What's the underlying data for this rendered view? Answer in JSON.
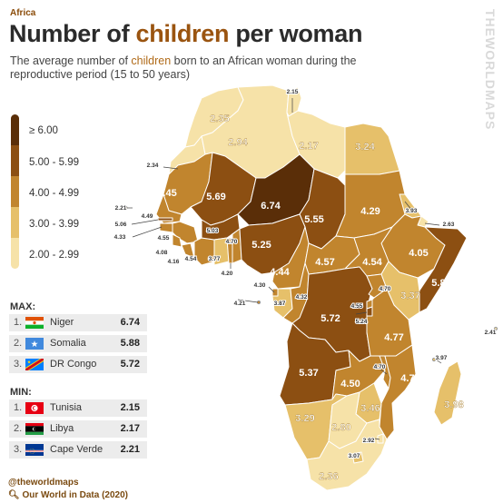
{
  "header": {
    "region": "Africa",
    "title_pre": "Number of ",
    "title_hl": "children",
    "title_post": " per woman",
    "subtitle_pre": "The average number of ",
    "subtitle_hl": "children",
    "subtitle_post": " born to an African woman during the reproductive period (15 to 50 years)",
    "watermark": "THEWORLDMAPS"
  },
  "legend": [
    {
      "label": "≥ 6.00",
      "color": "#5a2e08"
    },
    {
      "label": "5.00 - 5.99",
      "color": "#8c4f12"
    },
    {
      "label": "4.00 - 4.99",
      "color": "#c1852e"
    },
    {
      "label": "3.00 - 3.99",
      "color": "#e6c06a"
    },
    {
      "label": "2.00 - 2.99",
      "color": "#f6e2a8"
    }
  ],
  "max": {
    "title": "MAX:",
    "rows": [
      {
        "rank": "1.",
        "name": "Niger",
        "value": "6.74",
        "flag": "niger-flag"
      },
      {
        "rank": "2.",
        "name": "Somalia",
        "value": "5.88",
        "flag": "somalia-flag"
      },
      {
        "rank": "3.",
        "name": "DR Congo",
        "value": "5.72",
        "flag": "drcongo-flag"
      }
    ]
  },
  "min": {
    "title": "MIN:",
    "rows": [
      {
        "rank": "1.",
        "name": "Tunisia",
        "value": "2.15",
        "flag": "tunisia-flag"
      },
      {
        "rank": "2.",
        "name": "Libya",
        "value": "2.17",
        "flag": "libya-flag"
      },
      {
        "rank": "3.",
        "name": "Cape Verde",
        "value": "2.21",
        "flag": "capeverde-flag"
      }
    ]
  },
  "credits": {
    "handle": "@theworldmaps",
    "source": "Our World in Data (2020)"
  },
  "map_values": {
    "morocco": "2.35",
    "algeria": "2.94",
    "tunisia": "2.15",
    "libya": "2.17",
    "egypt": "3.24",
    "western_sahara": "2.34",
    "mauritania": "4.45",
    "mali": "5.69",
    "niger": "6.74",
    "chad": "5.55",
    "sudan": "4.29",
    "eritrea": "3.93",
    "djibouti": "2.63",
    "ethiopia": "4.05",
    "somalia": "5.88",
    "nigeria": "5.25",
    "burkina_faso": "5.03",
    "senegal": "4.49",
    "gambia": "5.06",
    "guinea_bissau": "4.33",
    "guinea": "4.55",
    "sierra_leone": "4.16",
    "liberia": "4.08",
    "cote_divoire": "4.54",
    "ghana": "3.77",
    "togo": "4.70",
    "benin": "4.20",
    "cameroon": "4.44",
    "car": "4.57",
    "south_sudan": "4.54",
    "equatorial_guinea": "4.30",
    "sao_tome": "4.21",
    "gabon": "3.87",
    "congo": "4.32",
    "drc": "5.72",
    "uganda": "4.70",
    "kenya": "3.37",
    "rwanda": "4.55",
    "burundi": "5.24",
    "tanzania": "4.77",
    "angola": "5.37",
    "zambia": "4.50",
    "malawi": "4.70",
    "mozambique": "4.71",
    "madagascar": "3.98",
    "comoros": "3.97",
    "mauritius": "2.41",
    "namibia": "3.29",
    "botswana": "2.80",
    "zimbabwe": "3.46",
    "eswatini": "2.92",
    "lesotho": "3.07",
    "south_africa": "2.36",
    "cape_verde": "2.21"
  }
}
